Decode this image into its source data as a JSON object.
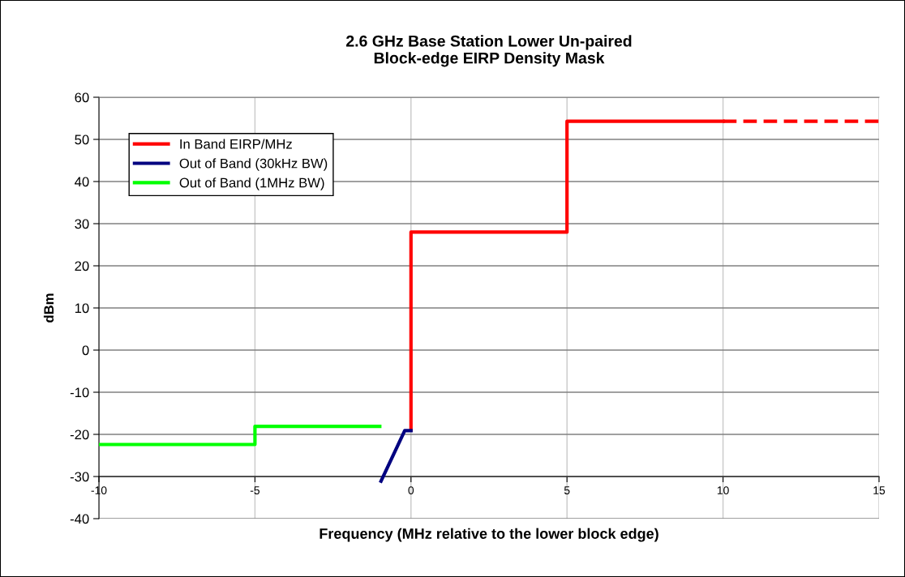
{
  "chart_data": {
    "type": "line",
    "title": "2.6 GHz Base Station Lower Un-paired\nBlock-edge EIRP Density Mask",
    "xlabel": "Frequency (MHz relative to the lower block edge)",
    "ylabel": "dBm",
    "xlim": [
      -10,
      15
    ],
    "xticks": [
      -10,
      -5,
      0,
      5,
      10,
      15
    ],
    "ylim": [
      -40,
      60
    ],
    "yticks": [
      -40,
      -30,
      -20,
      -10,
      0,
      10,
      20,
      30,
      40,
      50,
      60
    ],
    "grid": true,
    "legend": "top left",
    "marker": "none",
    "line_style": "solid",
    "series": [
      {
        "name": "In Band EIRP/MHz",
        "color": "#ff0000",
        "x": [
          0,
          0,
          5,
          5,
          10
        ],
        "values": [
          -19,
          28,
          28,
          54.3,
          54.3
        ]
      },
      {
        "name": "Out of Band (30kHz BW)",
        "color": "#000080",
        "x": [
          -0.96,
          -0.2,
          0
        ],
        "values": [
          -31.1,
          -19.1,
          -19.1
        ]
      },
      {
        "name": "Out of Band (1MHz BW)",
        "color": "#00ff00",
        "x": [
          -10,
          -5,
          -5,
          -1
        ],
        "values": [
          -22.4,
          -22.4,
          -18.1,
          -18.1
        ]
      },
      {
        "color": "#ff0000",
        "line_style": "dashed",
        "x": [
          10,
          15
        ],
        "values": [
          54.3,
          54.3
        ]
      }
    ]
  }
}
